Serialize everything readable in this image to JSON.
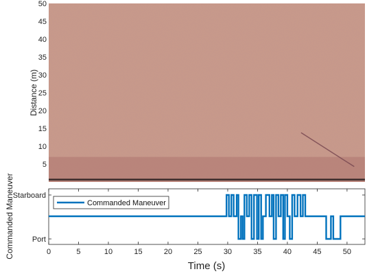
{
  "chart_data": [
    {
      "type": "heatmap",
      "ylabel": "Distance (m)",
      "ylim": [
        0,
        50
      ],
      "xlim": [
        0,
        53
      ],
      "yticks": [
        5,
        10,
        15,
        20,
        25,
        30,
        35,
        40,
        45,
        50
      ],
      "colors": {
        "background": "#c9998a",
        "near_band": "#b57f77",
        "bottom_line": "#3a2a2a",
        "streak": "#7a4a52"
      },
      "streak": {
        "x": [
          42.3,
          51.2
        ],
        "y": [
          13.8,
          4.3
        ]
      }
    },
    {
      "type": "line",
      "xlabel": "Time (s)",
      "ylabel": "Commanded Maneuver",
      "xlim": [
        0,
        53
      ],
      "xticks": [
        0,
        5,
        10,
        15,
        20,
        25,
        30,
        35,
        40,
        45,
        50
      ],
      "ytick_labels": [
        "Port",
        "Starboard"
      ],
      "legend": {
        "placement": "top-left"
      },
      "series": [
        {
          "name": "Commanded Maneuver",
          "color": "#0072bd",
          "x": [
            0,
            29.8,
            29.8,
            30.2,
            30.2,
            30.6,
            30.6,
            31.0,
            31.0,
            31.5,
            31.5,
            31.8,
            31.8,
            32.2,
            32.2,
            32.5,
            32.5,
            32.8,
            32.8,
            33.2,
            33.2,
            33.6,
            33.6,
            34.0,
            34.0,
            34.4,
            34.4,
            34.9,
            34.9,
            35.2,
            35.2,
            35.6,
            35.6,
            35.9,
            35.9,
            36.4,
            36.4,
            37.0,
            37.0,
            37.4,
            37.4,
            37.7,
            37.7,
            38.1,
            38.1,
            38.5,
            38.5,
            38.9,
            38.9,
            39.3,
            39.3,
            39.6,
            39.6,
            40.0,
            40.0,
            40.4,
            40.4,
            40.8,
            40.8,
            41.2,
            41.2,
            41.7,
            41.7,
            42.2,
            42.2,
            42.6,
            42.6,
            43.0,
            43.0,
            43.3,
            43.3,
            46.5,
            46.5,
            47.3,
            47.3,
            47.7,
            47.7,
            48.9,
            48.9,
            53
          ],
          "y": [
            0,
            0,
            1,
            1,
            0,
            0,
            1,
            1,
            0,
            0,
            1,
            1,
            -1,
            -1,
            0,
            0,
            -1,
            -1,
            1,
            1,
            0,
            0,
            1,
            1,
            -1,
            -1,
            1,
            1,
            -1,
            -1,
            1,
            1,
            -1,
            -1,
            0,
            0,
            1,
            1,
            0,
            0,
            1,
            1,
            -1,
            -1,
            1,
            1,
            0,
            0,
            1,
            1,
            -1,
            -1,
            1,
            1,
            0,
            0,
            -1,
            -1,
            1,
            1,
            0,
            0,
            1,
            1,
            0,
            0,
            1,
            1,
            0,
            0,
            0,
            0,
            -1,
            -1,
            0,
            0,
            -1,
            -1,
            0,
            0
          ]
        }
      ]
    }
  ]
}
